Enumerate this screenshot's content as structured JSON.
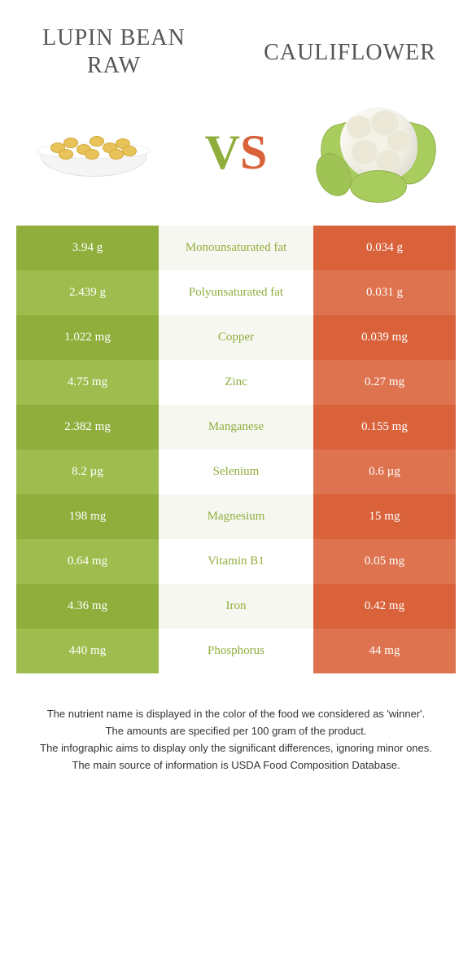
{
  "header": {
    "left_title_line1": "Lupin bean",
    "left_title_line2": "raw",
    "right_title": "Cauliflower",
    "vs_v": "V",
    "vs_s": "S"
  },
  "colors": {
    "left_base": "#8fae3b",
    "left_alt": "#9fbd4e",
    "mid_base": "#f7f7f2",
    "mid_alt": "#ffffff",
    "right_base": "#d9623b",
    "right_alt": "#de734f",
    "nutrient_text": "#8fae3b",
    "value_text": "#ffffff"
  },
  "rows": [
    {
      "nutrient": "Monounsaturated fat",
      "left": "3.94 g",
      "right": "0.034 g"
    },
    {
      "nutrient": "Polyunsaturated fat",
      "left": "2.439 g",
      "right": "0.031 g"
    },
    {
      "nutrient": "Copper",
      "left": "1.022 mg",
      "right": "0.039 mg"
    },
    {
      "nutrient": "Zinc",
      "left": "4.75 mg",
      "right": "0.27 mg"
    },
    {
      "nutrient": "Manganese",
      "left": "2.382 mg",
      "right": "0.155 mg"
    },
    {
      "nutrient": "Selenium",
      "left": "8.2 µg",
      "right": "0.6 µg"
    },
    {
      "nutrient": "Magnesium",
      "left": "198 mg",
      "right": "15 mg"
    },
    {
      "nutrient": "Vitamin B1",
      "left": "0.64 mg",
      "right": "0.05 mg"
    },
    {
      "nutrient": "Iron",
      "left": "4.36 mg",
      "right": "0.42 mg"
    },
    {
      "nutrient": "Phosphorus",
      "left": "440 mg",
      "right": "44 mg"
    }
  ],
  "footer": {
    "line1": "The nutrient name is displayed in the color of the food we considered as 'winner'.",
    "line2": "The amounts are specified per 100 gram of the product.",
    "line3": "The infographic aims to display only the significant differences, ignoring minor ones.",
    "line4": "The main source of information is USDA Food Composition Database."
  }
}
